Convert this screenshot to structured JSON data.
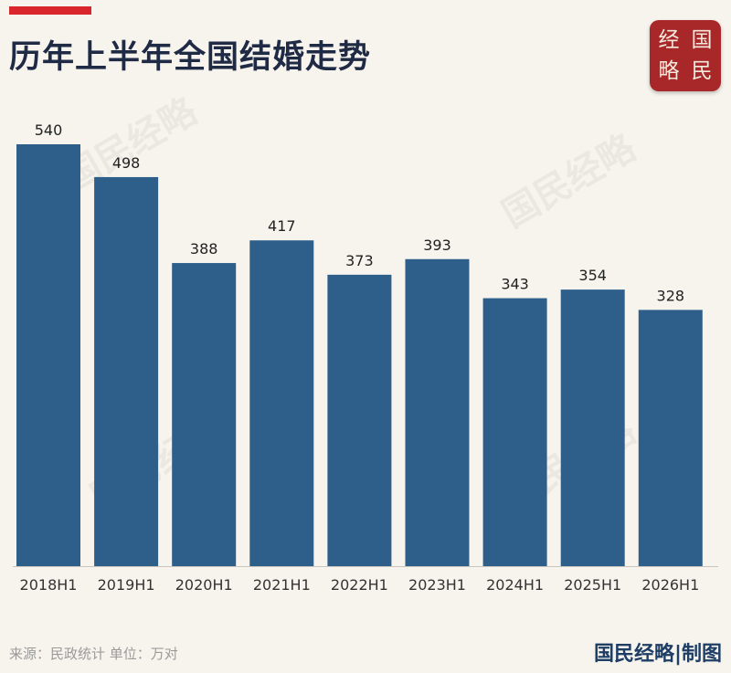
{
  "header": {
    "title": "历年上半年全国结婚走势"
  },
  "logo": {
    "chars": [
      "经",
      "国",
      "略",
      "民"
    ]
  },
  "watermark_text": "国民经略",
  "chart_data": {
    "type": "bar",
    "title": "历年上半年全国结婚走势",
    "categories": [
      "2018H1",
      "2019H1",
      "2020H1",
      "2021H1",
      "2022H1",
      "2023H1",
      "2024H1",
      "2025H1",
      "2026H1"
    ],
    "values": [
      540,
      498,
      388,
      417,
      373,
      393,
      343,
      354,
      328
    ],
    "unit": "万对",
    "ylim": [
      0,
      540
    ],
    "grid": false,
    "bar_color": "#2e5f8a",
    "data_labels": true
  },
  "footer": {
    "source": "来源：民政统计 单位：万对",
    "brand": "国民经略|制图"
  },
  "colors": {
    "accent_red": "#d9262c",
    "logo_red": "#a8282a",
    "bar_blue": "#2e5f8a",
    "title_navy": "#1f2a44",
    "brand_navy": "#1f3e66"
  }
}
